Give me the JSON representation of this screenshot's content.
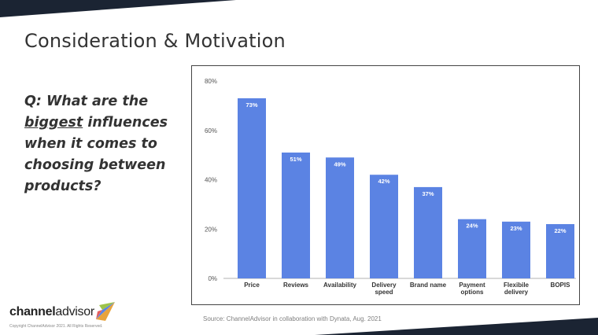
{
  "slide": {
    "title": "Consideration & Motivation",
    "question": {
      "prefix": "Q: What are the ",
      "emphasis": "biggest",
      "suffix": " influences when it comes to choosing between products?"
    },
    "source": "Source: ChannelAdvisor in collaboration with Dynata, Aug. 2021",
    "copyright": "Copyright ChannelAdvisor 2021. All Rights Reserved.",
    "logo": {
      "part1": "channel",
      "part2": "advisor"
    }
  },
  "colors": {
    "bar": "#5b83e3",
    "band": "#1b2433",
    "text": "#333333"
  },
  "chart_data": {
    "type": "bar",
    "categories": [
      [
        "Price"
      ],
      [
        "Reviews"
      ],
      [
        "Availability"
      ],
      [
        "Delivery",
        "speed"
      ],
      [
        "Brand name"
      ],
      [
        "Payment",
        "options"
      ],
      [
        "Flexibile",
        "delivery"
      ],
      [
        "BOPIS"
      ]
    ],
    "values": [
      73,
      51,
      49,
      42,
      37,
      24,
      23,
      22
    ],
    "data_labels": [
      "73%",
      "51%",
      "49%",
      "42%",
      "37%",
      "24%",
      "23%",
      "22%"
    ],
    "yticks": [
      0,
      20,
      40,
      60,
      80
    ],
    "ytick_labels": [
      "0%",
      "20%",
      "40%",
      "60%",
      "80%"
    ],
    "ylim": [
      0,
      80
    ],
    "grid": false,
    "legend": "none"
  }
}
